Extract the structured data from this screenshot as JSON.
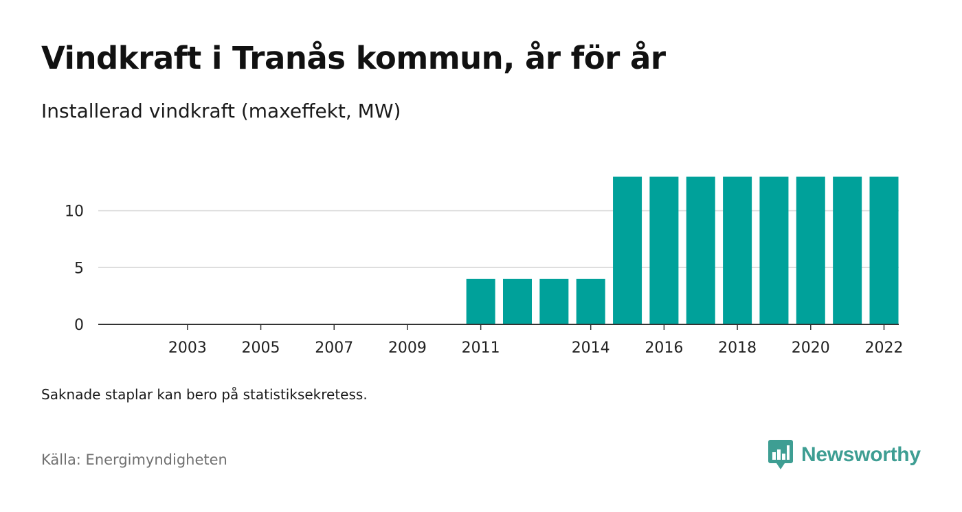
{
  "colors": {
    "bar": "#00a19a",
    "brand": "#3e9e93",
    "grid": "#d9d9d9",
    "axis": "#333333"
  },
  "footer": {
    "note": "Saknade staplar kan bero på statistiksekretess.",
    "source": "Källa: Energimyndigheten",
    "brand": "Newsworthy",
    "brand_icon": "bar-chart-speech-bubble-icon"
  },
  "chart_data": {
    "type": "bar",
    "title": "Vindkraft i Tranås kommun, år för år",
    "subtitle": "Installerad vindkraft (maxeffekt, MW)",
    "xlabel": "",
    "ylabel": "",
    "categories": [
      "2002",
      "2003",
      "2004",
      "2005",
      "2006",
      "2007",
      "2008",
      "2009",
      "2010",
      "2011",
      "2012",
      "2013",
      "2014",
      "2015",
      "2016",
      "2017",
      "2018",
      "2019",
      "2020",
      "2021",
      "2022"
    ],
    "values": [
      0,
      0,
      0,
      0,
      0,
      0,
      0,
      0,
      0,
      4,
      4,
      4,
      4,
      13,
      13,
      13,
      13,
      13,
      13,
      13,
      13
    ],
    "x_tick_labels": [
      "2003",
      "2005",
      "2007",
      "2009",
      "2011",
      "2014",
      "2016",
      "2018",
      "2020",
      "2022"
    ],
    "y_ticks": [
      0,
      5,
      10
    ],
    "ylim": [
      0,
      13
    ],
    "grid": true,
    "legend": "none"
  }
}
